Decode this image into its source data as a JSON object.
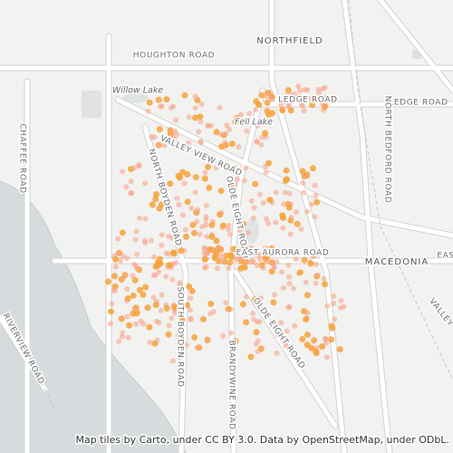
{
  "map": {
    "labels": [
      {
        "text": "NORTHFIELD"
      },
      {
        "text": "HOUGHTON ROAD"
      },
      {
        "text": "Willow Lake"
      },
      {
        "text": "LEDGE ROAD"
      },
      {
        "text": "LEDGE ROAD"
      },
      {
        "text": "Fell Lake"
      },
      {
        "text": "VALLEY VIEW ROAD"
      },
      {
        "text": "NORTH BOYDEN ROAD"
      },
      {
        "text": "OLDE EIGHT ROAD"
      },
      {
        "text": "EAST AURORA ROAD"
      },
      {
        "text": "MACEDONIA"
      },
      {
        "text": "EAS"
      },
      {
        "text": "VALLEY"
      },
      {
        "text": "CHAFFEE ROAD"
      },
      {
        "text": "NORTH BEDFORD ROAD"
      },
      {
        "text": "SOUTH BOYDEN ROAD"
      },
      {
        "text": "OLDE EIGHT ROAD"
      },
      {
        "text": "BRANDYWINE ROAD"
      },
      {
        "text": "RIVERVIEW ROAD"
      }
    ],
    "attribution": "Map tiles by Carto, under CC BY 3.0. Data by OpenStreetMap, under ODbL."
  }
}
